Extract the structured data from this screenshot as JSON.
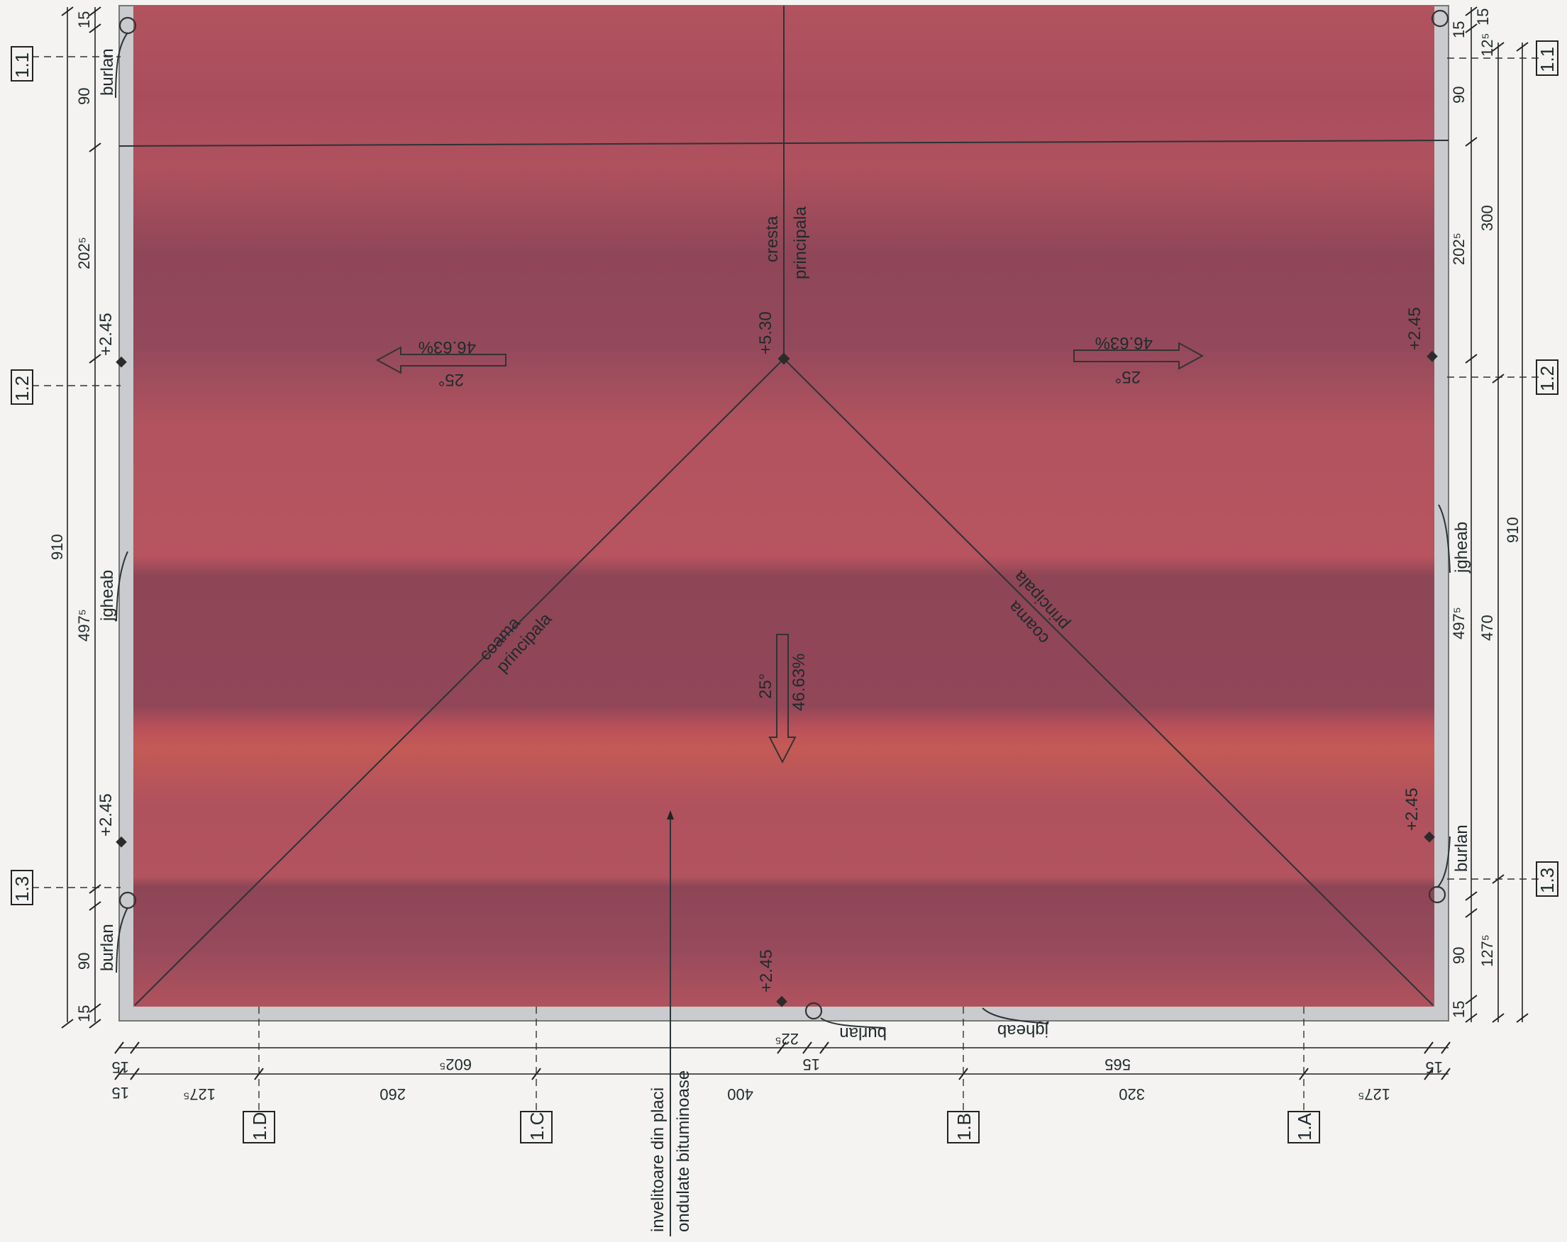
{
  "colors": {
    "roof": "#b0515f",
    "roof_dark": "#8f4658",
    "border": "#c9cbce",
    "ink": "#1f2a2c",
    "paper": "#f4f3f1"
  },
  "grid": {
    "left": [
      "1.1",
      "1.2",
      "1.3"
    ],
    "right": [
      "1.1",
      "1.2",
      "1.3"
    ],
    "bottom": [
      "1.D",
      "1.C",
      "1.B",
      "1.A"
    ]
  },
  "labels": {
    "ridge_main": [
      "cresta",
      "principala"
    ],
    "hip_left": [
      "coama",
      "principala"
    ],
    "hip_right": [
      "coama",
      "principala"
    ],
    "covering": [
      "invelitoare din placi",
      "ondulate bituminoase"
    ],
    "burlan": "burlan",
    "jgheab": "jgheab"
  },
  "levels": {
    "ridge": "+5.30",
    "eave": "+2.45"
  },
  "slopes": {
    "deg": "25°",
    "pct": "46.63%"
  },
  "dims": {
    "left_outer": [
      "15",
      "90",
      "202⁵",
      "497⁵",
      "90",
      "15"
    ],
    "left_total": "910",
    "right_inner": [
      "15",
      "90",
      "202⁵",
      "497⁵",
      "90",
      "15"
    ],
    "right_outer": [
      "12⁵",
      "300",
      "470",
      "127⁵"
    ],
    "right_top": "15",
    "right_total": "910",
    "bottom_row1": [
      "15",
      "602⁵",
      "15",
      "565",
      "15"
    ],
    "bottom_small": "22⁵",
    "bottom_row2": [
      "15",
      "127⁵",
      "260",
      "400",
      "320",
      "127⁵"
    ]
  }
}
